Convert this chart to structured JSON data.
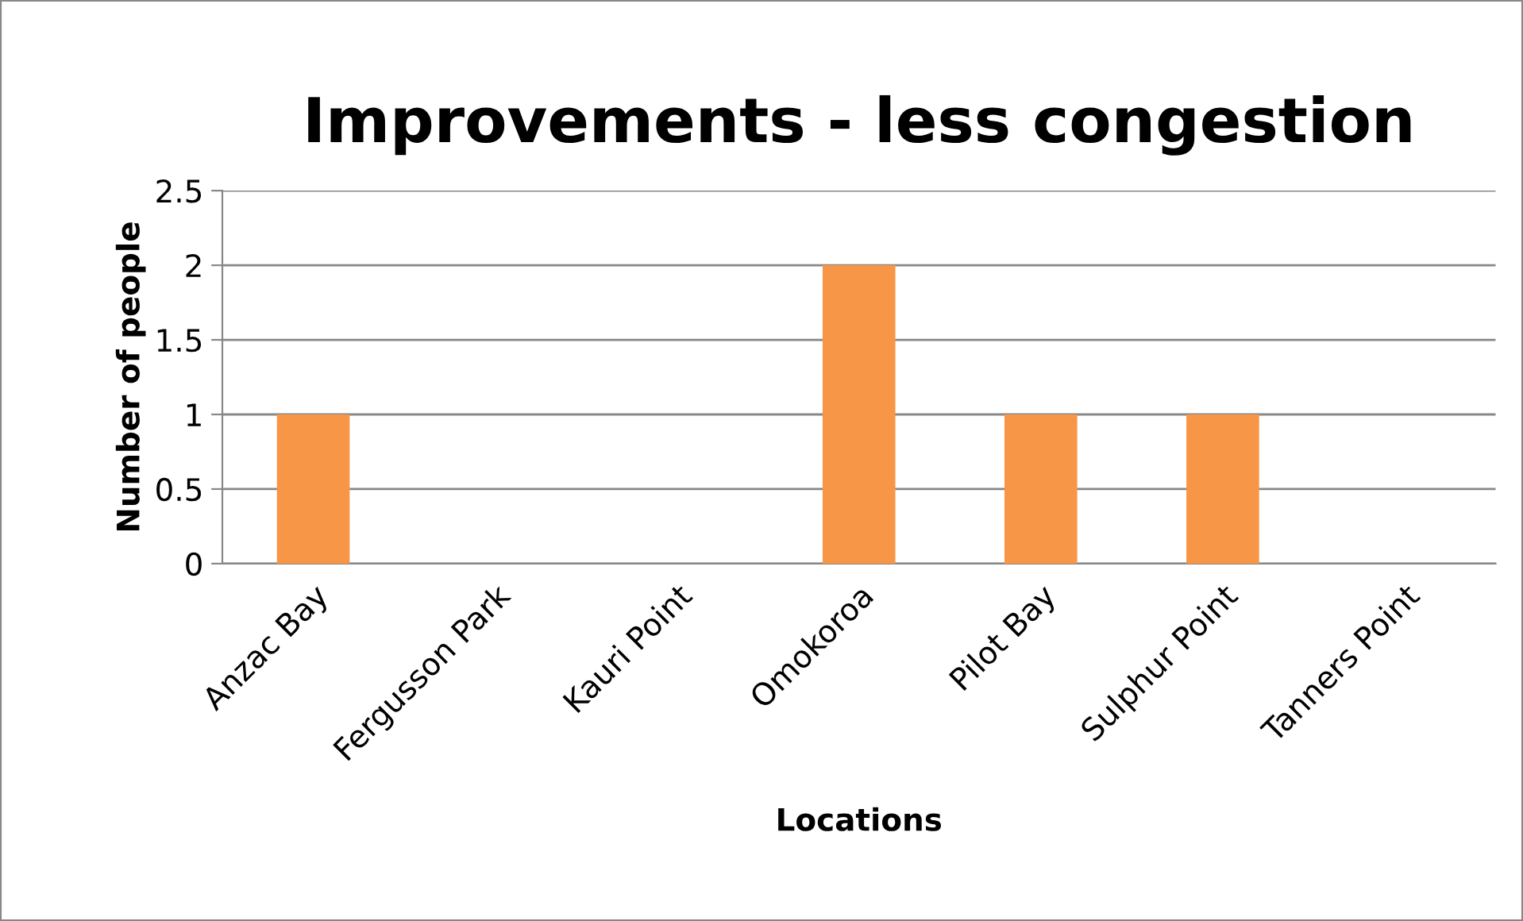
{
  "chart_data": {
    "type": "bar",
    "title": "Improvements - less congestion",
    "xlabel": "Locations",
    "ylabel": "Number of people",
    "categories": [
      "Anzac Bay",
      "Fergusson Park",
      "Kauri Point",
      "Omokoroa",
      "Pilot Bay",
      "Sulphur Point",
      "Tanners Point"
    ],
    "values": [
      1,
      0,
      0,
      2,
      1,
      1,
      0
    ],
    "color": "#f79646",
    "ylim": [
      0,
      2.5
    ],
    "yticks": [
      0,
      0.5,
      1,
      1.5,
      2,
      2.5
    ],
    "grid": "y",
    "legend": false
  }
}
